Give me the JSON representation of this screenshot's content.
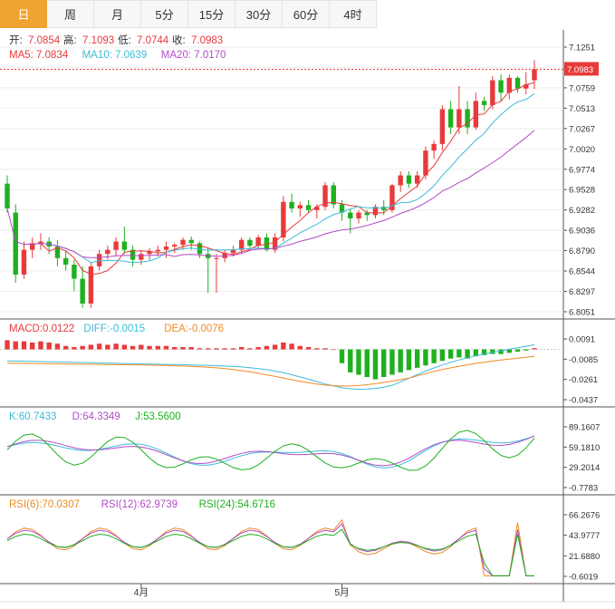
{
  "tabs": [
    "日",
    "周",
    "月",
    "5分",
    "15分",
    "30分",
    "60分",
    "4时"
  ],
  "active_tab": 0,
  "colors": {
    "up": "#e83a3a",
    "down": "#1fb01f",
    "ma5": "#e83a3a",
    "ma10": "#3cbcd8",
    "ma20": "#b14cc8",
    "grid": "#eeeeee"
  },
  "price_panel": {
    "ohlc": [
      {
        "label": "开:",
        "value": "7.0854"
      },
      {
        "label": "高:",
        "value": "7.1093"
      },
      {
        "label": "低:",
        "value": "7.0744"
      },
      {
        "label": "收:",
        "value": "7.0983"
      }
    ],
    "ma": [
      {
        "label": "MA5:",
        "value": "7.0834",
        "color": "#e83a3a"
      },
      {
        "label": "MA10:",
        "value": "7.0639",
        "color": "#3cbcd8"
      },
      {
        "label": "MA20:",
        "value": "7.0170",
        "color": "#b14cc8"
      }
    ],
    "yticks": [
      "7.1251",
      "7.1005",
      "7.0759",
      "7.0513",
      "7.0267",
      "7.0020",
      "6.9774",
      "6.9528",
      "6.9282",
      "6.9036",
      "6.8790",
      "6.8544",
      "6.8297",
      "6.8051"
    ],
    "current_price": "7.0983"
  },
  "macd_panel": {
    "labels": [
      {
        "text": "MACD:0.0122",
        "color": "#e83a3a"
      },
      {
        "text": "DIFF:-0.0015",
        "color": "#3cbcd8"
      },
      {
        "text": "DEA:-0.0076",
        "color": "#f08a24"
      }
    ],
    "yticks": [
      "0.0091",
      "-0.0085",
      "-0.0261",
      "-0.0437"
    ]
  },
  "kdj_panel": {
    "labels": [
      {
        "text": "K:60.7433",
        "color": "#3cbcd8"
      },
      {
        "text": "D:64.3349",
        "color": "#b14cc8"
      },
      {
        "text": "J:53.5600",
        "color": "#1fb01f"
      }
    ],
    "yticks": [
      "89.1607",
      "59.1810",
      "29.2014",
      "-0.7783"
    ]
  },
  "rsi_panel": {
    "labels": [
      {
        "text": "RSI(6):70.0307",
        "color": "#f08a24"
      },
      {
        "text": "RSI(12):62.9739",
        "color": "#b14cc8"
      },
      {
        "text": "RSI(24):54.6716",
        "color": "#1fb01f"
      }
    ],
    "yticks": [
      "66.2676",
      "43.9777",
      "21.6880",
      "-0.6019"
    ]
  },
  "x_labels": [
    {
      "text": "4月",
      "index": 16
    },
    {
      "text": "5月",
      "index": 40
    }
  ],
  "chart_data": {
    "type": "candlestick",
    "ylim": [
      6.8051,
      7.1251
    ],
    "candles": [
      [
        6.96,
        6.97,
        6.925,
        6.93
      ],
      [
        6.925,
        6.935,
        6.84,
        6.85
      ],
      [
        6.85,
        6.89,
        6.845,
        6.88
      ],
      [
        6.88,
        6.895,
        6.87,
        6.888
      ],
      [
        6.888,
        6.9,
        6.88,
        6.89
      ],
      [
        6.89,
        6.895,
        6.875,
        6.884
      ],
      [
        6.884,
        6.892,
        6.86,
        6.87
      ],
      [
        6.87,
        6.878,
        6.855,
        6.862
      ],
      [
        6.862,
        6.868,
        6.83,
        6.845
      ],
      [
        6.845,
        6.86,
        6.81,
        6.815
      ],
      [
        6.815,
        6.865,
        6.81,
        6.86
      ],
      [
        6.86,
        6.88,
        6.855,
        6.875
      ],
      [
        6.875,
        6.885,
        6.868,
        6.88
      ],
      [
        6.88,
        6.895,
        6.872,
        6.89
      ],
      [
        6.89,
        6.908,
        6.875,
        6.88
      ],
      [
        6.88,
        6.885,
        6.86,
        6.868
      ],
      [
        6.868,
        6.88,
        6.862,
        6.875
      ],
      [
        6.875,
        6.882,
        6.868,
        6.878
      ],
      [
        6.878,
        6.885,
        6.872,
        6.88
      ],
      [
        6.88,
        6.89,
        6.87,
        6.884
      ],
      [
        6.884,
        6.888,
        6.876,
        6.886
      ],
      [
        6.886,
        6.895,
        6.88,
        6.892
      ],
      [
        6.892,
        6.896,
        6.88,
        6.888
      ],
      [
        6.888,
        6.89,
        6.87,
        6.875
      ],
      [
        6.875,
        6.882,
        6.828,
        6.87
      ],
      [
        6.87,
        6.875,
        6.828,
        6.87
      ],
      [
        6.87,
        6.88,
        6.865,
        6.876
      ],
      [
        6.876,
        6.885,
        6.872,
        6.88
      ],
      [
        6.88,
        6.895,
        6.876,
        6.892
      ],
      [
        6.892,
        6.895,
        6.88,
        6.885
      ],
      [
        6.885,
        6.898,
        6.88,
        6.895
      ],
      [
        6.895,
        6.9,
        6.878,
        6.88
      ],
      [
        6.88,
        6.9,
        6.876,
        6.895
      ],
      [
        6.895,
        6.945,
        6.89,
        6.938
      ],
      [
        6.938,
        6.948,
        6.925,
        6.93
      ],
      [
        6.93,
        6.938,
        6.92,
        6.934
      ],
      [
        6.934,
        6.94,
        6.924,
        6.928
      ],
      [
        6.928,
        6.935,
        6.918,
        6.932
      ],
      [
        6.932,
        6.962,
        6.928,
        6.958
      ],
      [
        6.958,
        6.962,
        6.93,
        6.935
      ],
      [
        6.935,
        6.94,
        6.915,
        6.925
      ],
      [
        6.925,
        6.93,
        6.9,
        6.918
      ],
      [
        6.918,
        6.928,
        6.912,
        6.925
      ],
      [
        6.925,
        6.928,
        6.915,
        6.922
      ],
      [
        6.922,
        6.935,
        6.918,
        6.932
      ],
      [
        6.932,
        6.94,
        6.922,
        6.928
      ],
      [
        6.928,
        6.96,
        6.925,
        6.958
      ],
      [
        6.958,
        6.975,
        6.95,
        6.97
      ],
      [
        6.97,
        6.975,
        6.955,
        6.96
      ],
      [
        6.96,
        6.975,
        6.955,
        6.97
      ],
      [
        6.97,
        7.005,
        6.965,
        7.0
      ],
      [
        7.0,
        7.012,
        6.99,
        7.008
      ],
      [
        7.008,
        7.055,
        7.0,
        7.05
      ],
      [
        7.05,
        7.06,
        7.02,
        7.028
      ],
      [
        7.028,
        7.078,
        7.02,
        7.05
      ],
      [
        7.05,
        7.06,
        7.02,
        7.028
      ],
      [
        7.028,
        7.07,
        7.025,
        7.06
      ],
      [
        7.06,
        7.065,
        7.048,
        7.055
      ],
      [
        7.055,
        7.09,
        7.05,
        7.085
      ],
      [
        7.085,
        7.092,
        7.06,
        7.07
      ],
      [
        7.07,
        7.092,
        7.062,
        7.088
      ],
      [
        7.088,
        7.09,
        7.07,
        7.075
      ],
      [
        7.075,
        7.095,
        7.068,
        7.08
      ],
      [
        7.085,
        7.1093,
        7.0744,
        7.0983
      ]
    ]
  }
}
